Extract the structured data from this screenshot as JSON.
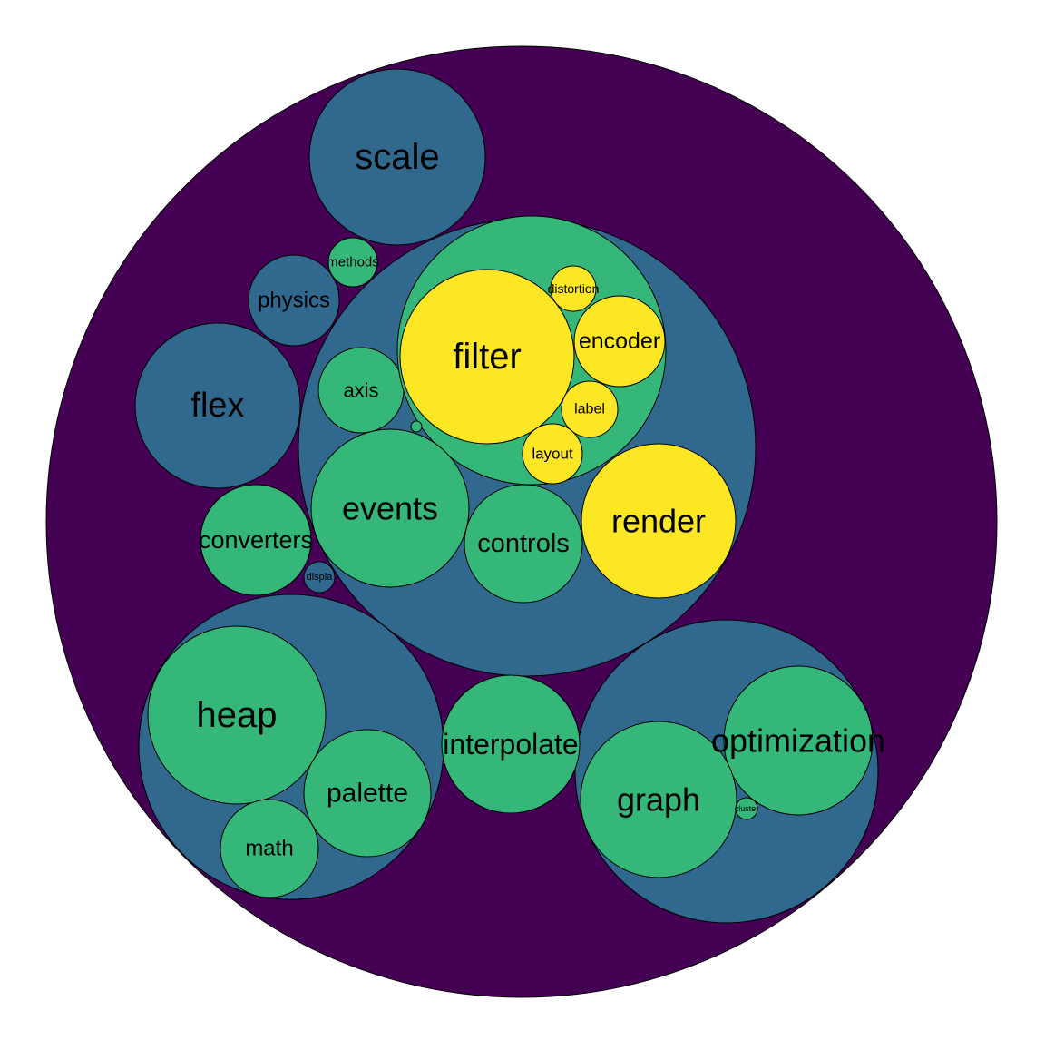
{
  "chart_data": {
    "type": "circle-packing",
    "colors": {
      "root": "#440154",
      "depth1": "#31688E",
      "depth2": "#35B779",
      "depth3": "#FDE725",
      "stroke": "#000000"
    },
    "labels": {
      "scale": "scale",
      "methods": "methods",
      "physics": "physics",
      "flex": "flex",
      "axis": "axis",
      "filter": "filter",
      "distortion": "distortion",
      "encoder": "encoder",
      "label": "label",
      "layout": "layout",
      "events": "events",
      "controls": "controls",
      "render": "render",
      "converters": "converters",
      "display": "displa",
      "heap": "heap",
      "palette": "palette",
      "math": "math",
      "interpolate": "interpolate",
      "optimization": "optimization",
      "graph": "graph",
      "cluster": "cluster"
    }
  }
}
